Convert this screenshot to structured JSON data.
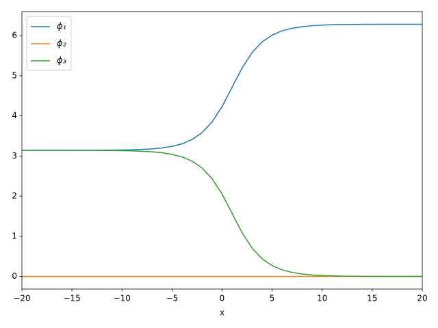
{
  "chart_data": {
    "type": "line",
    "xlabel": "x",
    "x": [
      -20,
      -19,
      -18,
      -17,
      -16,
      -15,
      -14,
      -13,
      -12,
      -11,
      -10,
      -9,
      -8,
      -7,
      -6,
      -5,
      -4,
      -3,
      -2,
      -1,
      0,
      1,
      2,
      3,
      4,
      5,
      6,
      7,
      8,
      9,
      10,
      11,
      12,
      13,
      14,
      15,
      16,
      17,
      18,
      19,
      20
    ],
    "series": [
      {
        "name": "ϕ₁",
        "color": "#1f77b4",
        "values": [
          3.142,
          3.142,
          3.142,
          3.142,
          3.142,
          3.142,
          3.143,
          3.143,
          3.145,
          3.147,
          3.15,
          3.155,
          3.164,
          3.178,
          3.202,
          3.241,
          3.305,
          3.411,
          3.581,
          3.847,
          4.232,
          4.712,
          5.193,
          5.578,
          5.844,
          6.014,
          6.119,
          6.183,
          6.22,
          6.247,
          6.261,
          6.27,
          6.275,
          6.278,
          6.28,
          6.281,
          6.282,
          6.283,
          6.283,
          6.283,
          6.283
        ]
      },
      {
        "name": "ϕ₂",
        "color": "#ff7f0e",
        "values": [
          0,
          0,
          0,
          0,
          0,
          0,
          0,
          0,
          0,
          0,
          0,
          0,
          0,
          0,
          0,
          0,
          0,
          0,
          0,
          0,
          0,
          0,
          0,
          0,
          0,
          0,
          0,
          0,
          0,
          0,
          0,
          0,
          0,
          0,
          0,
          0,
          0,
          0,
          0,
          0,
          0
        ]
      },
      {
        "name": "ϕ₃",
        "color": "#2ca02c",
        "values": [
          3.142,
          3.142,
          3.141,
          3.141,
          3.141,
          3.141,
          3.14,
          3.14,
          3.139,
          3.137,
          3.133,
          3.128,
          3.119,
          3.105,
          3.081,
          3.042,
          2.978,
          2.873,
          2.703,
          2.437,
          2.052,
          1.571,
          1.09,
          0.705,
          0.439,
          0.269,
          0.164,
          0.1,
          0.061,
          0.037,
          0.022,
          0.014,
          0.008,
          0.005,
          0.003,
          0.002,
          0.001,
          0.001,
          0,
          0,
          0
        ]
      }
    ],
    "xlim": [
      -20,
      20
    ],
    "xticks": [
      {
        "value": -20,
        "label": "−20"
      },
      {
        "value": -15,
        "label": "−15"
      },
      {
        "value": -10,
        "label": "−10"
      },
      {
        "value": -5,
        "label": "−5"
      },
      0,
      5,
      10,
      15,
      20
    ],
    "ylim": [
      -0.314,
      6.597
    ],
    "yticks": [
      0,
      1,
      2,
      3,
      4,
      5,
      6
    ],
    "legend": "upper left"
  }
}
